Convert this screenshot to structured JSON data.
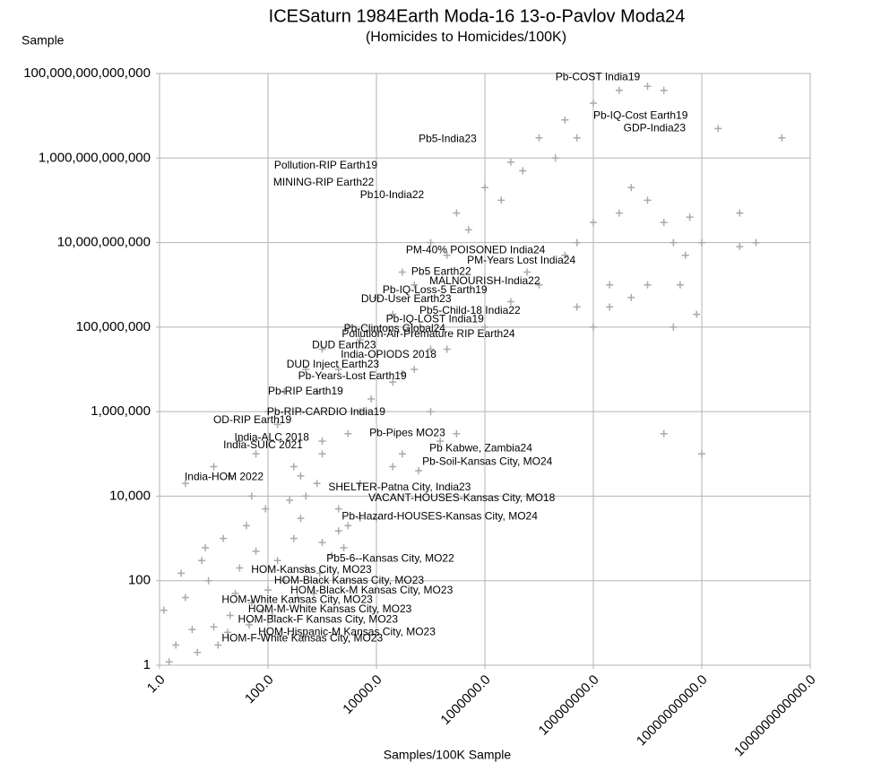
{
  "chart_data": {
    "type": "scatter",
    "title": "ICESaturn 1984Earth Moda-16 13-o-Pavlov Moda24",
    "subtitle": "(Homicides to Homicides/100K)",
    "y_label": "Sample",
    "x_label": "Samples/100K Sample",
    "xscale": "log",
    "yscale": "log",
    "grid": true,
    "xlim": [
      1,
      1000000000000.0
    ],
    "ylim": [
      1,
      100000000000000.0
    ],
    "xticks": [
      {
        "value": 1,
        "label": "1.0"
      },
      {
        "value": 100,
        "label": "100.0"
      },
      {
        "value": 10000,
        "label": "10000.0"
      },
      {
        "value": 1000000,
        "label": "1000000.0"
      },
      {
        "value": 100000000,
        "label": "100000000.0"
      },
      {
        "value": 10000000000,
        "label": "10000000000.0"
      },
      {
        "value": 1000000000000,
        "label": "1000000000000.0"
      }
    ],
    "yticks": [
      1,
      100,
      {
        "value": 10000,
        "label": "10,000"
      },
      {
        "value": 1000000,
        "label": "1,000,000"
      },
      {
        "value": 100000000,
        "label": "100,000,000"
      },
      {
        "value": 10000000000,
        "label": "10,000,000,000"
      },
      {
        "value": 1000000000000,
        "label": "1,000,000,000,000"
      },
      {
        "value": 100000000000000,
        "label": "100,000,000,000,000"
      }
    ],
    "series": [
      {
        "color": "#aaaaaa",
        "x": [
          2,
          5,
          10,
          20,
          50,
          100,
          3,
          8,
          30,
          60,
          150,
          300,
          500,
          1000,
          2000,
          1.5,
          4,
          12,
          25,
          80,
          200,
          400,
          700,
          1500,
          3000,
          6,
          15,
          40,
          90,
          250,
          1.2,
          2.5,
          7,
          18,
          45,
          120,
          350,
          900,
          2500,
          5000,
          3,
          10,
          30,
          100,
          200,
          500,
          1000,
          3000,
          10000.0,
          30000.0,
          100000.0,
          300000.0,
          1000000.0,
          3000000.0,
          10000000.0,
          30000000.0,
          100000000.0,
          300000000.0,
          1000000000.0,
          2000000000.0,
          20,
          60,
          150,
          400,
          800,
          2000,
          5000,
          20000.0,
          50000.0,
          200000.0,
          500000.0,
          2000000.0,
          5000000.0,
          20000000.0,
          50000000.0,
          50,
          300,
          1000,
          5000,
          20000.0,
          100000.0,
          1000000.0,
          10000000.0,
          30000000.0,
          50000000.0,
          100000000.0,
          200000000.0,
          300000000.0,
          500000000.0,
          1000000000.0,
          1000000000.0,
          2000000000.0,
          3000000000.0,
          5000000000.0,
          10000000000.0,
          10000000000.0,
          2000000000.0,
          50000000000.0,
          100000000000.0,
          300000000000.0,
          200000000.0,
          500000000.0,
          3000000000.0,
          8000000000.0,
          50000000.0,
          100000000.0,
          4000000000.0,
          6000000000.0,
          20000000000.0,
          50000000000.0,
          6000000.0,
          3000000.0,
          10000.0,
          30000.0,
          100000.0,
          300000.0,
          10000.0,
          5000.0,
          20000.0,
          50000.0,
          200000.0,
          3000.0,
          1000.0,
          500,
          8000.0,
          30000.0,
          60000.0,
          2000.0,
          800,
          400,
          150000.0,
          10000.0
        ],
        "values": [
          3,
          2,
          8,
          15,
          30,
          60,
          40,
          100,
          200,
          500,
          300,
          1000,
          200,
          800,
          1500,
          1.2,
          7,
          3,
          50,
          20,
          100,
          3000,
          50,
          400,
          2000,
          300,
          1000,
          2000,
          5000,
          8000,
          20,
          150,
          600,
          6,
          9,
          15,
          40,
          150,
          600,
          3000,
          20000.0,
          50000.0,
          200000.0,
          1000000.0,
          3000000.0,
          10000000.0,
          30000000.0,
          100000000.0,
          500000000.0,
          2000000000.0,
          10000000000.0,
          50000000000.0,
          200000000000.0,
          800000000000.0,
          3000000000000.0,
          8000000000000.0,
          20000000000000.0,
          40000000000000.0,
          50000000000000.0,
          40000000000000.0,
          30000.0,
          100000.0,
          500000.0,
          1000000.0,
          3000000.0,
          10000000.0,
          50000000.0,
          200000000.0,
          1000000000.0,
          5000000000.0,
          20000000000.0,
          100000000000.0,
          500000000000.0,
          1000000000000.0,
          3000000000000.0,
          10000.0,
          50000.0,
          200000.0,
          1000000.0,
          5000000.0,
          30000000.0,
          100000000.0,
          1000000000.0,
          5000000000.0,
          10000000000.0,
          30000000000.0,
          1000000000.0,
          50000000000.0,
          200000000000.0,
          100000000000.0,
          1000000000.0,
          30000000000.0,
          10000000000.0,
          5000000000.0,
          10000000000.0,
          100000.0,
          300000.0,
          50000000000.0,
          10000000000.0,
          3000000000000.0,
          300000000.0,
          500000000.0,
          100000000.0,
          200000000.0,
          300000000.0,
          100000000.0,
          1000000000.0,
          40000000000.0,
          5000000000000.0,
          8000000000.0,
          2000000000.0,
          400000000.0,
          10000.0,
          100000.0,
          1000000.0,
          300000.0,
          3000.0,
          20000.0,
          50000.0,
          10000000.0,
          30000000.0,
          300000.0,
          100000.0,
          10000.0,
          2000000.0,
          8000000.0,
          40000.0,
          5000.0,
          20000.0,
          30000.0,
          200000.0,
          80000000.0
        ]
      }
    ],
    "annotations": [
      {
        "text": "Pb-COST India19",
        "x": 20000000.0,
        "y": 80000000000000.0
      },
      {
        "text": "Pb-IQ-Cost Earth19",
        "x": 100000000.0,
        "y": 10000000000000.0
      },
      {
        "text": "GDP-India23",
        "x": 360000000.0,
        "y": 5000000000000.0
      },
      {
        "text": "Pb5-India23",
        "x": 60000.0,
        "y": 2800000000000.0
      },
      {
        "text": "Pollution-RIP Earth19",
        "x": 130,
        "y": 660000000000.0
      },
      {
        "text": "MINING-RIP Earth22",
        "x": 125,
        "y": 260000000000.0
      },
      {
        "text": "Pb10-India22",
        "x": 5000,
        "y": 130000000000.0
      },
      {
        "text": "PM-40% POISONED India24",
        "x": 35000.0,
        "y": 6600000000.0
      },
      {
        "text": "PM-Years Lost India24",
        "x": 470000.0,
        "y": 3700000000.0
      },
      {
        "text": "Pb5 Earth22",
        "x": 44000.0,
        "y": 2000000000.0
      },
      {
        "text": "MALNOURISH-India22",
        "x": 95000.0,
        "y": 1200000000.0
      },
      {
        "text": "Pb-IQ-Loss-5 Earth19",
        "x": 13000.0,
        "y": 740000000.0
      },
      {
        "text": "DUD-User Earth23",
        "x": 5200,
        "y": 460000000.0
      },
      {
        "text": "Pb5-Child-18 India22",
        "x": 62000.0,
        "y": 240000000.0
      },
      {
        "text": "Pb-IQ-LOST India19",
        "x": 15000.0,
        "y": 150000000.0
      },
      {
        "text": "Pb-Clintons Global24",
        "x": 2500,
        "y": 90000000.0
      },
      {
        "text": "Pollution-Air-Premature RIP Earth24",
        "x": 2300,
        "y": 67000000.0
      },
      {
        "text": "DUD Earth23",
        "x": 650,
        "y": 37000000.0
      },
      {
        "text": "India-OPIODS 2018",
        "x": 2200,
        "y": 22000000.0
      },
      {
        "text": "DUD Inject Earth23",
        "x": 220,
        "y": 13000000.0
      },
      {
        "text": "Pb-Years-Lost Earth19",
        "x": 360,
        "y": 6800000.0
      },
      {
        "text": "Pb-RIP Earth19",
        "x": 100,
        "y": 3000000.0
      },
      {
        "text": "Pb-RIP-CARDIO India19",
        "x": 96,
        "y": 960000.0
      },
      {
        "text": "OD-RIP Earth19",
        "x": 9.8,
        "y": 620000.0
      },
      {
        "text": "India-ALC 2018",
        "x": 24,
        "y": 240000.0
      },
      {
        "text": "India-SUIC 2021",
        "x": 15,
        "y": 160000.0
      },
      {
        "text": "Pb-Pipes MO23",
        "x": 7400,
        "y": 310000.0
      },
      {
        "text": "Pb Kabwe, Zambia24",
        "x": 95000.0,
        "y": 135000.0
      },
      {
        "text": "Pb-Soil-Kansas City, MO24",
        "x": 70000.0,
        "y": 65000.0
      },
      {
        "text": "India-HOM 2022",
        "x": 2.9,
        "y": 28000.0
      },
      {
        "text": "SHELTER-Patna City, India23",
        "x": 1300,
        "y": 16000.0
      },
      {
        "text": "VACANT-HOUSES-Kansas City, MO18",
        "x": 7100,
        "y": 8900
      },
      {
        "text": "Pb-Hazard-HOUSES-Kansas City, MO24",
        "x": 2300,
        "y": 3300
      },
      {
        "text": "Pb5-6--Kansas City, MO22",
        "x": 1200,
        "y": 330
      },
      {
        "text": "HOM-Kansas City, MO23",
        "x": 49,
        "y": 180
      },
      {
        "text": "HOM-Black Kansas City, MO23",
        "x": 130,
        "y": 100
      },
      {
        "text": "HOM-Black-M Kansas City, MO23",
        "x": 260,
        "y": 58
      },
      {
        "text": "HOM-White Kansas City, MO23",
        "x": 14,
        "y": 35
      },
      {
        "text": "HOM-M-White Kansas City, MO23",
        "x": 43,
        "y": 21
      },
      {
        "text": "HOM-Black-F Kansas City, MO23",
        "x": 28,
        "y": 12
      },
      {
        "text": "HOM-Hispanic-M Kansas City, MO23",
        "x": 66,
        "y": 6
      },
      {
        "text": "HOM-F-White Kansas City, MO23",
        "x": 14,
        "y": 4.3
      }
    ]
  }
}
